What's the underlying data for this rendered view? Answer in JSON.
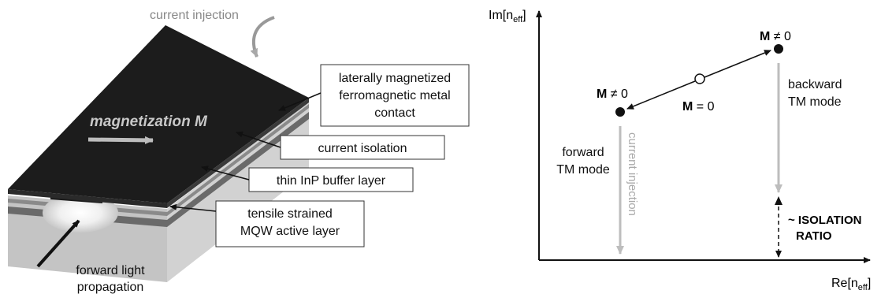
{
  "device": {
    "current_injection": "current injection",
    "magnetization": "magnetization M",
    "callouts": {
      "contact_line1": "laterally magnetized",
      "contact_line2": "ferromagnetic metal",
      "contact_line3": "contact",
      "isolation": "current isolation",
      "buffer": "thin InP buffer layer",
      "mqw_line1": "tensile strained",
      "mqw_line2": "MQW active layer"
    },
    "forward_light_line1": "forward light",
    "forward_light_line2": "propagation"
  },
  "plot": {
    "y_axis": "Im[n",
    "y_axis_sub": "eff",
    "y_axis_close": "]",
    "x_axis": "Re[n",
    "x_axis_sub": "eff",
    "x_axis_close": "]",
    "m_ne0_left_bold": "M",
    "m_ne0_left_rest": " ≠ 0",
    "m_ne0_right_bold": "M",
    "m_ne0_right_rest": " ≠ 0",
    "m_eq0_bold": "M",
    "m_eq0_rest": " = 0",
    "forward_line1": "forward",
    "forward_line2": "TM mode",
    "backward_line1": "backward",
    "backward_line2": "TM mode",
    "current_injection": "current injection",
    "isolation_line1": "~ ISOLATION",
    "isolation_line2": "RATIO"
  },
  "colors": {
    "metal": "#1c1c1c",
    "gray_arrow": "#bdbdbd",
    "layer_dark": "#6a6a6a",
    "layer_light": "#b8b8b8"
  }
}
